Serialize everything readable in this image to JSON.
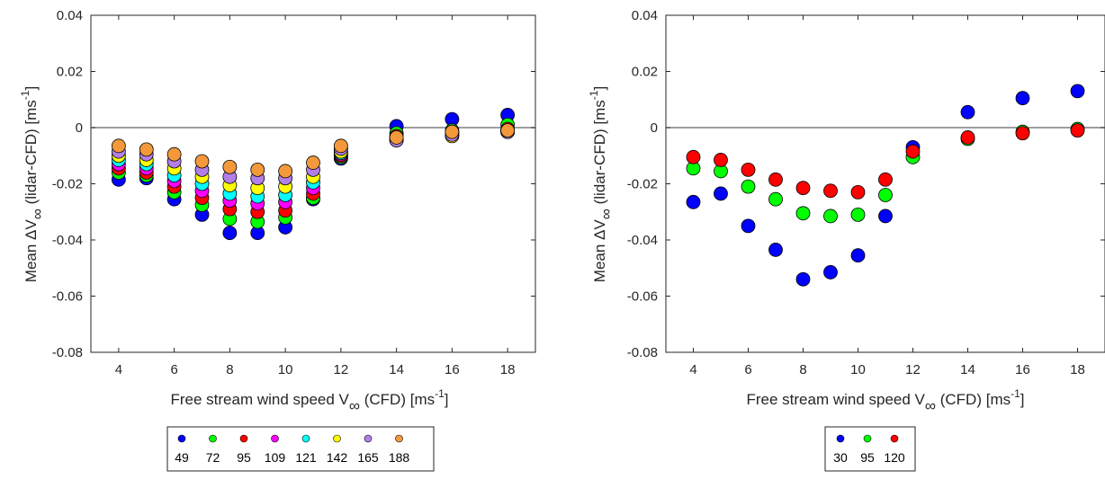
{
  "chart_data": [
    {
      "type": "scatter",
      "title": "",
      "xlabel": {
        "main": "Free stream wind speed V",
        "sub": "∞",
        "unit": " (CFD) [ms",
        "exp": "-1",
        "end": "]"
      },
      "ylabel": {
        "main": "Mean ΔV",
        "sub": "∞",
        "unit": " (lidar-CFD) [ms",
        "exp": "-1",
        "end": "]"
      },
      "xlim": [
        3,
        19
      ],
      "ylim": [
        -0.08,
        0.04
      ],
      "xticks": [
        4,
        6,
        8,
        10,
        12,
        14,
        16,
        18
      ],
      "xtick_labels": [
        "4",
        "6",
        "8",
        "10",
        "12",
        "14",
        "16",
        "18"
      ],
      "yticks": [
        -0.08,
        -0.06,
        -0.04,
        -0.02,
        0,
        0.02,
        0.04
      ],
      "ytick_labels": [
        "-0.08",
        "-0.06",
        "-0.04",
        "-0.02",
        "0",
        "0.02",
        "0.04"
      ],
      "reference_line": 0,
      "legend": {
        "placement": "below",
        "orientation": "horizontal"
      },
      "x": [
        4,
        5,
        6,
        7,
        8,
        9,
        10,
        11,
        12,
        14,
        16,
        18
      ],
      "series": [
        {
          "name": "49",
          "color": "#0000ff",
          "values": [
            -0.0185,
            -0.018,
            -0.0255,
            -0.031,
            -0.0375,
            -0.0375,
            -0.0355,
            -0.0255,
            -0.011,
            0.0005,
            0.003,
            0.0045
          ]
        },
        {
          "name": "72",
          "color": "#00ff00",
          "values": [
            -0.016,
            -0.017,
            -0.023,
            -0.0275,
            -0.0325,
            -0.0335,
            -0.032,
            -0.025,
            -0.0105,
            -0.002,
            -0.001,
            0.001
          ]
        },
        {
          "name": "95",
          "color": "#ff0000",
          "values": [
            -0.0145,
            -0.016,
            -0.021,
            -0.025,
            -0.029,
            -0.03,
            -0.0295,
            -0.0235,
            -0.01,
            -0.003,
            -0.0015,
            -0.0005
          ]
        },
        {
          "name": "109",
          "color": "#ff00ff",
          "values": [
            -0.013,
            -0.0145,
            -0.019,
            -0.0225,
            -0.026,
            -0.027,
            -0.0265,
            -0.0215,
            -0.0095,
            -0.0035,
            -0.002,
            -0.001
          ]
        },
        {
          "name": "121",
          "color": "#00ffff",
          "values": [
            -0.0115,
            -0.013,
            -0.017,
            -0.02,
            -0.0235,
            -0.0245,
            -0.024,
            -0.0195,
            -0.009,
            -0.004,
            -0.0025,
            -0.0012
          ]
        },
        {
          "name": "142",
          "color": "#ffff00",
          "values": [
            -0.01,
            -0.0115,
            -0.0145,
            -0.0175,
            -0.0205,
            -0.0215,
            -0.021,
            -0.0175,
            -0.0085,
            -0.0045,
            -0.003,
            -0.0015
          ]
        },
        {
          "name": "165",
          "color": "#b27fe8",
          "values": [
            -0.0085,
            -0.0095,
            -0.012,
            -0.015,
            -0.0175,
            -0.018,
            -0.018,
            -0.015,
            -0.0075,
            -0.0045,
            -0.0025,
            -0.0015
          ]
        },
        {
          "name": "188",
          "color": "#f4993b",
          "values": [
            -0.0065,
            -0.0078,
            -0.0095,
            -0.012,
            -0.014,
            -0.015,
            -0.0155,
            -0.0125,
            -0.0065,
            -0.0035,
            -0.0015,
            -0.001
          ]
        }
      ]
    },
    {
      "type": "scatter",
      "title": "",
      "xlabel": {
        "main": "Free stream wind speed V",
        "sub": "∞",
        "unit": " (CFD) [ms",
        "exp": "-1",
        "end": "]"
      },
      "ylabel": {
        "main": "Mean ΔV",
        "sub": "∞",
        "unit": " (lidar-CFD) [ms",
        "exp": "-1",
        "end": "]"
      },
      "xlim": [
        3,
        19
      ],
      "ylim": [
        -0.08,
        0.04
      ],
      "xticks": [
        4,
        6,
        8,
        10,
        12,
        14,
        16,
        18
      ],
      "xtick_labels": [
        "4",
        "6",
        "8",
        "10",
        "12",
        "14",
        "16",
        "18"
      ],
      "yticks": [
        -0.08,
        -0.06,
        -0.04,
        -0.02,
        0,
        0.02,
        0.04
      ],
      "ytick_labels": [
        "-0.08",
        "-0.06",
        "-0.04",
        "-0.02",
        "0",
        "0.02",
        "0.04"
      ],
      "reference_line": 0,
      "legend": {
        "placement": "below",
        "orientation": "horizontal"
      },
      "x": [
        4,
        5,
        6,
        7,
        8,
        9,
        10,
        11,
        12,
        14,
        16,
        18
      ],
      "series": [
        {
          "name": "30",
          "color": "#0000ff",
          "values": [
            -0.0265,
            -0.0235,
            -0.035,
            -0.0435,
            -0.054,
            -0.0515,
            -0.0455,
            -0.0315,
            -0.007,
            0.0055,
            0.0105,
            0.013
          ]
        },
        {
          "name": "95",
          "color": "#00ff00",
          "values": [
            -0.0145,
            -0.0155,
            -0.021,
            -0.0255,
            -0.0305,
            -0.0315,
            -0.031,
            -0.024,
            -0.0105,
            -0.004,
            -0.0015,
            -0.0005
          ]
        },
        {
          "name": "120",
          "color": "#ff0000",
          "values": [
            -0.0105,
            -0.0115,
            -0.015,
            -0.0185,
            -0.0215,
            -0.0225,
            -0.023,
            -0.0185,
            -0.0085,
            -0.0035,
            -0.002,
            -0.001
          ]
        }
      ]
    }
  ]
}
